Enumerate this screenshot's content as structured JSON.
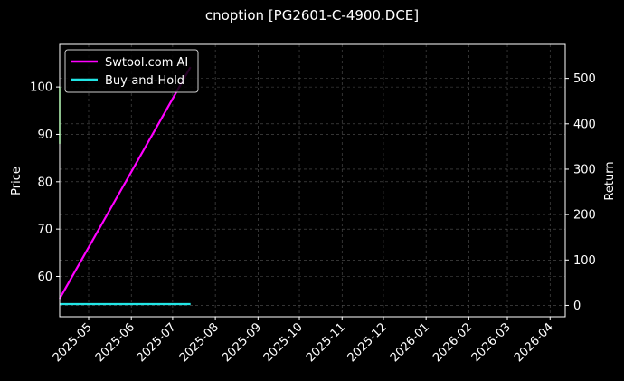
{
  "chart_data": {
    "type": "line",
    "title": "cnoption [PG2601-C-4900.DCE]",
    "xlabel": "",
    "ylabel": "Price",
    "y2label": "Return",
    "x_ticks": [
      "2025-05",
      "2025-06",
      "2025-07",
      "2025-08",
      "2025-09",
      "2025-10",
      "2025-11",
      "2025-12",
      "2026-01",
      "2026-02",
      "2026-03",
      "2026-04"
    ],
    "xlim": [
      "2025-04-10",
      "2026-04-12"
    ],
    "ylim": [
      51.5,
      109
    ],
    "y_ticks": [
      60,
      70,
      80,
      90,
      100
    ],
    "y2lim": [
      -25,
      575
    ],
    "y2_ticks": [
      0,
      100,
      200,
      300,
      400,
      500
    ],
    "grid": true,
    "legend_position": "top-left",
    "price_series": {
      "color": "#33ff33",
      "points": [
        {
          "x": "2025-04-10",
          "y": 88
        },
        {
          "x": "2025-04-10",
          "y": 100
        }
      ]
    },
    "series": [
      {
        "name": "Swtool.com AI",
        "color": "#ff00ff",
        "axis": "right",
        "points": [
          {
            "x": "2025-04-10",
            "y": 15
          },
          {
            "x": "2025-07-14",
            "y": 525
          }
        ]
      },
      {
        "name": "Buy-and-Hold",
        "color": "#22e5e5",
        "axis": "right",
        "points": [
          {
            "x": "2025-04-10",
            "y": 3
          },
          {
            "x": "2025-07-14",
            "y": 3
          }
        ]
      }
    ]
  }
}
